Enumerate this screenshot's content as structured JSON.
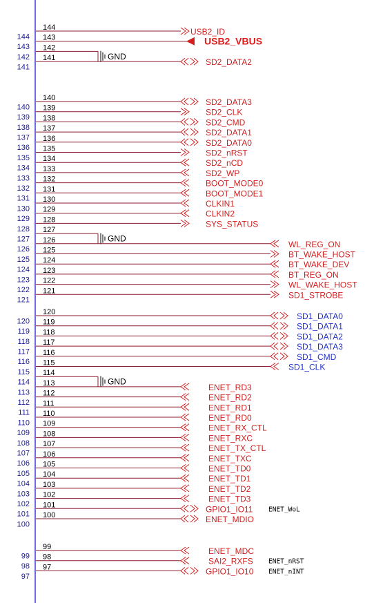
{
  "colors": {
    "bus_line": "#3b3bd2",
    "wire": "#8b1a2e",
    "pin_text": "#1a1a9a",
    "signal_red": "#d21f1f",
    "signal_blue": "#1f2fd2",
    "port_outline": "#d21f1f",
    "gnd_symbol": "#000000"
  },
  "blocks": [
    {
      "pins": [
        {
          "num": "144",
          "signal": "USB2_ID",
          "port": "output"
        },
        {
          "num": "143",
          "signal": "USB2_VBUS",
          "port": "arrow"
        },
        {
          "num": "142",
          "signal": "GND",
          "port": "gnd"
        },
        {
          "num": "141",
          "signal": "SD2_DATA2",
          "port": "bidir"
        }
      ]
    },
    {
      "pins": [
        {
          "num": "140",
          "signal": "SD2_DATA3",
          "port": "bidir"
        },
        {
          "num": "139",
          "signal": "SD2_CLK",
          "port": "output"
        },
        {
          "num": "138",
          "signal": "SD2_CMD",
          "port": "bidir"
        },
        {
          "num": "137",
          "signal": "SD2_DATA1",
          "port": "bidir"
        },
        {
          "num": "136",
          "signal": "SD2_DATA0",
          "port": "bidir"
        },
        {
          "num": "135",
          "signal": "SD2_nRST",
          "port": "output"
        },
        {
          "num": "134",
          "signal": "SD2_nCD",
          "port": "input"
        },
        {
          "num": "133",
          "signal": "SD2_WP",
          "port": "input"
        },
        {
          "num": "132",
          "signal": "BOOT_MODE0",
          "port": "input"
        },
        {
          "num": "131",
          "signal": "BOOT_MODE1",
          "port": "input"
        },
        {
          "num": "130",
          "signal": "CLKIN1",
          "port": "input"
        },
        {
          "num": "129",
          "signal": "CLKIN2",
          "port": "input"
        },
        {
          "num": "128",
          "signal": "SYS_STATUS",
          "port": "output"
        },
        {
          "num": "127",
          "signal": "GND",
          "port": "gnd"
        },
        {
          "num": "126",
          "signal": "WL_REG_ON",
          "port": "input",
          "side": "right"
        },
        {
          "num": "125",
          "signal": "BT_WAKE_HOST",
          "port": "output",
          "side": "right"
        },
        {
          "num": "124",
          "signal": "BT_WAKE_DEV",
          "port": "input",
          "side": "right"
        },
        {
          "num": "123",
          "signal": "BT_REG_ON",
          "port": "input",
          "side": "right"
        },
        {
          "num": "122",
          "signal": "WL_WAKE_HOST",
          "port": "output",
          "side": "right"
        },
        {
          "num": "121",
          "signal": "SD1_STROBE",
          "port": "output",
          "side": "right"
        }
      ]
    },
    {
      "pins": [
        {
          "num": "120",
          "signal": "SD1_DATA0",
          "port": "bidir",
          "side": "right",
          "blue": true
        },
        {
          "num": "119",
          "signal": "SD1_DATA1",
          "port": "bidir",
          "side": "right",
          "blue": true
        },
        {
          "num": "118",
          "signal": "SD1_DATA2",
          "port": "bidir",
          "side": "right",
          "blue": true
        },
        {
          "num": "117",
          "signal": "SD1_DATA3",
          "port": "bidir",
          "side": "right",
          "blue": true
        },
        {
          "num": "116",
          "signal": "SD1_CMD",
          "port": "bidir",
          "side": "right",
          "blue": true
        },
        {
          "num": "115",
          "signal": "SD1_CLK",
          "port": "input",
          "side": "right",
          "blue": true
        },
        {
          "num": "114",
          "signal": "GND",
          "port": "gnd"
        },
        {
          "num": "113",
          "signal": "ENET_RD3",
          "port": "input",
          "side": "mid"
        },
        {
          "num": "112",
          "signal": "ENET_RD2",
          "port": "input",
          "side": "mid"
        },
        {
          "num": "111",
          "signal": "ENET_RD1",
          "port": "input",
          "side": "mid"
        },
        {
          "num": "110",
          "signal": "ENET_RD0",
          "port": "input",
          "side": "mid"
        },
        {
          "num": "109",
          "signal": "ENET_RX_CTL",
          "port": "input",
          "side": "mid"
        },
        {
          "num": "108",
          "signal": "ENET_RXC",
          "port": "input",
          "side": "mid"
        },
        {
          "num": "107",
          "signal": "ENET_TX_CTL",
          "port": "input",
          "side": "mid"
        },
        {
          "num": "106",
          "signal": "ENET_TXC",
          "port": "input",
          "side": "mid"
        },
        {
          "num": "105",
          "signal": "ENET_TD0",
          "port": "input",
          "side": "mid"
        },
        {
          "num": "104",
          "signal": "ENET_TD1",
          "port": "input",
          "side": "mid"
        },
        {
          "num": "103",
          "signal": "ENET_TD2",
          "port": "input",
          "side": "mid"
        },
        {
          "num": "102",
          "signal": "ENET_TD3",
          "port": "input",
          "side": "mid"
        },
        {
          "num": "101",
          "signal": "GPIO1_IO11",
          "port": "bidir",
          "side": "mid",
          "note": "ENET_WoL"
        },
        {
          "num": "100",
          "signal": "ENET_MDIO",
          "port": "bidir",
          "side": "mid"
        }
      ]
    },
    {
      "pins": [
        {
          "num": "99",
          "signal": "ENET_MDC",
          "port": "input",
          "side": "mid"
        },
        {
          "num": "98",
          "signal": "SAI2_RXFS",
          "port": "input",
          "side": "mid",
          "note": "ENET_nRST"
        },
        {
          "num": "97",
          "signal": "GPIO1_IO10",
          "port": "bidir",
          "side": "mid",
          "note": "ENET_nINT"
        }
      ]
    }
  ]
}
